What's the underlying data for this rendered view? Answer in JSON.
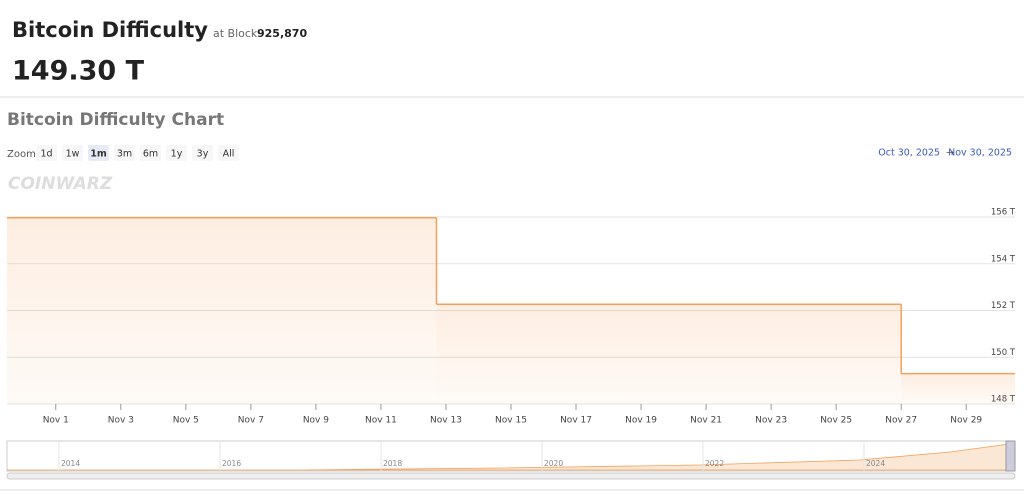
{
  "header": {
    "title": "Bitcoin Difficulty",
    "block_prefix": "at Block",
    "block": "925,870",
    "value": "149.30 T"
  },
  "toolbar": {
    "zoom_label": "Zoom",
    "buttons": [
      "1d",
      "1w",
      "1m",
      "3m",
      "6m",
      "1y",
      "3y",
      "All"
    ],
    "selected": "1m",
    "range_from": "Oct 30, 2025",
    "range_arrow": "→",
    "range_to": "Nov 30, 2025"
  },
  "watermark": "COINWARZ",
  "navigator": {
    "labels": [
      "2014",
      "2016",
      "2018",
      "2020",
      "2022",
      "2024"
    ]
  },
  "chart_data": {
    "type": "step-area",
    "title": "Bitcoin Difficulty Chart",
    "x": [
      "2025-10-30T12:00",
      "2025-11-12T17:00",
      "2025-11-27T00:00"
    ],
    "series": [
      {
        "name": "Difficulty",
        "color": "#f5a05a",
        "values": [
          155.97,
          152.27,
          149.3
        ]
      }
    ],
    "xlim": [
      "2025-10-30T12:00",
      "2025-11-30T12:00"
    ],
    "xticks": [
      {
        "value": "2025-11-01",
        "label": "Nov 1"
      },
      {
        "value": "2025-11-03",
        "label": "Nov 3"
      },
      {
        "value": "2025-11-05",
        "label": "Nov 5"
      },
      {
        "value": "2025-11-07",
        "label": "Nov 7"
      },
      {
        "value": "2025-11-09",
        "label": "Nov 9"
      },
      {
        "value": "2025-11-11",
        "label": "Nov 11"
      },
      {
        "value": "2025-11-13",
        "label": "Nov 13"
      },
      {
        "value": "2025-11-15",
        "label": "Nov 15"
      },
      {
        "value": "2025-11-17",
        "label": "Nov 17"
      },
      {
        "value": "2025-11-19",
        "label": "Nov 19"
      },
      {
        "value": "2025-11-21",
        "label": "Nov 21"
      },
      {
        "value": "2025-11-23",
        "label": "Nov 23"
      },
      {
        "value": "2025-11-25",
        "label": "Nov 25"
      },
      {
        "value": "2025-11-27",
        "label": "Nov 27"
      },
      {
        "value": "2025-11-29",
        "label": "Nov 29"
      }
    ],
    "ylim": [
      148,
      156
    ],
    "yticks": [
      {
        "value": 148,
        "label": "148 T"
      },
      {
        "value": 150,
        "label": "150 T"
      },
      {
        "value": 152,
        "label": "152 T"
      },
      {
        "value": 154,
        "label": "154 T"
      },
      {
        "value": 156,
        "label": "156 T"
      }
    ],
    "grid": true
  }
}
